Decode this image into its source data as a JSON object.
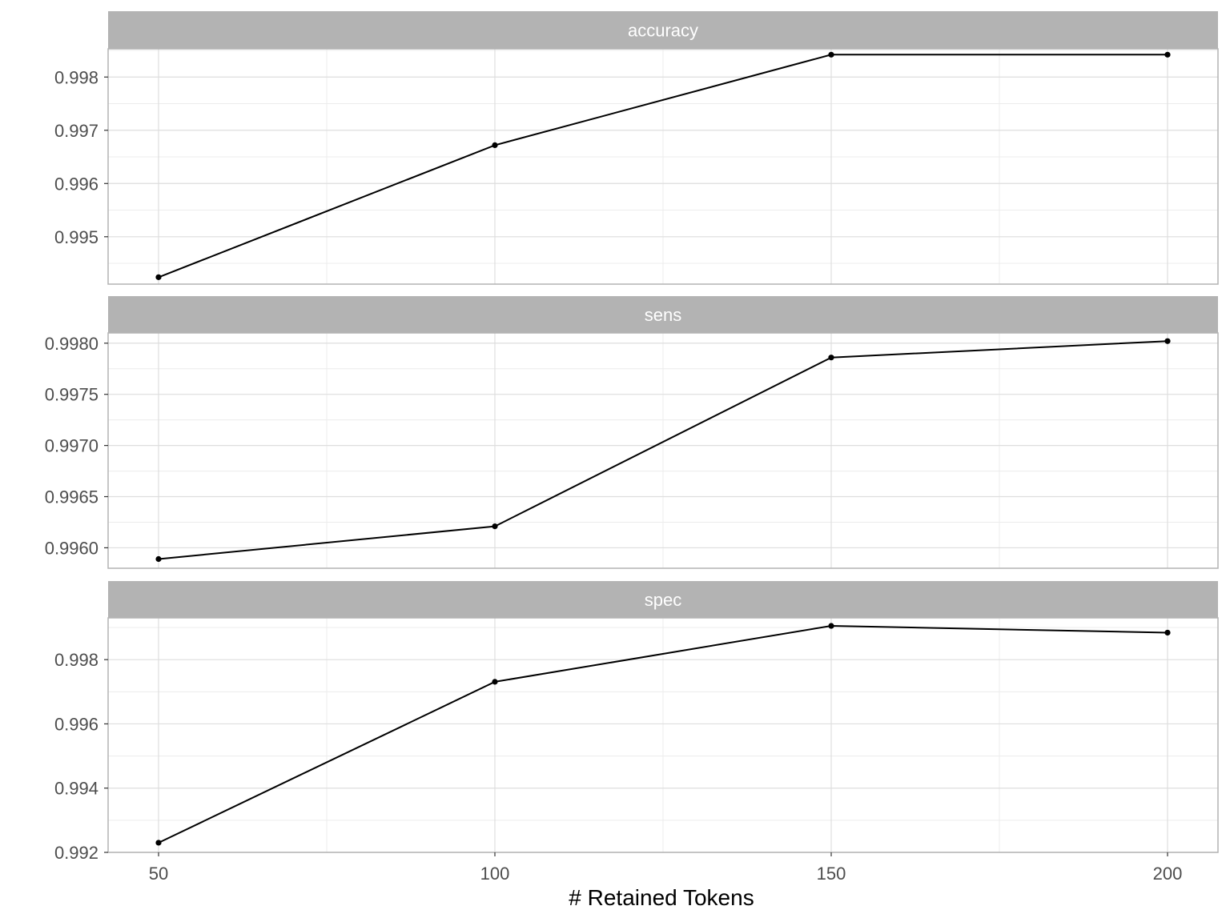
{
  "chart_data": {
    "type": "line",
    "xlabel": "# Retained Tokens",
    "x": [
      50,
      100,
      150,
      200
    ],
    "x_ticks": [
      "50",
      "100",
      "150",
      "200"
    ],
    "xlim": [
      42.5,
      207.5
    ],
    "grid": true,
    "colors": {
      "line": "#000000",
      "strip": "#b3b3b3",
      "strip_text": "#ffffff",
      "grid_major": "#dedede",
      "grid_minor": "#ececec",
      "panel_border": "#b3b3b3",
      "tick_text": "#4d4d4d"
    },
    "panels": [
      {
        "name": "accuracy",
        "values": [
          0.99424,
          0.99672,
          0.99842,
          0.99842
        ],
        "ylim": [
          0.99411,
          0.99853
        ],
        "y_ticks": [
          0.995,
          0.996,
          0.997,
          0.998
        ],
        "y_tick_labels": [
          "0.995",
          "0.996",
          "0.997",
          "0.998"
        ]
      },
      {
        "name": "sens",
        "values": [
          0.99589,
          0.99621,
          0.99786,
          0.99802
        ],
        "ylim": [
          0.9958,
          0.9981
        ],
        "y_ticks": [
          0.996,
          0.9965,
          0.997,
          0.9975,
          0.998
        ],
        "y_tick_labels": [
          "0.9960",
          "0.9965",
          "0.9970",
          "0.9975",
          "0.9980"
        ]
      },
      {
        "name": "spec",
        "values": [
          0.9923,
          0.99731,
          0.99905,
          0.99884
        ],
        "ylim": [
          0.992,
          0.9993
        ],
        "y_ticks": [
          0.992,
          0.994,
          0.996,
          0.998
        ],
        "y_tick_labels": [
          "0.992",
          "0.994",
          "0.996",
          "0.998"
        ]
      }
    ]
  }
}
